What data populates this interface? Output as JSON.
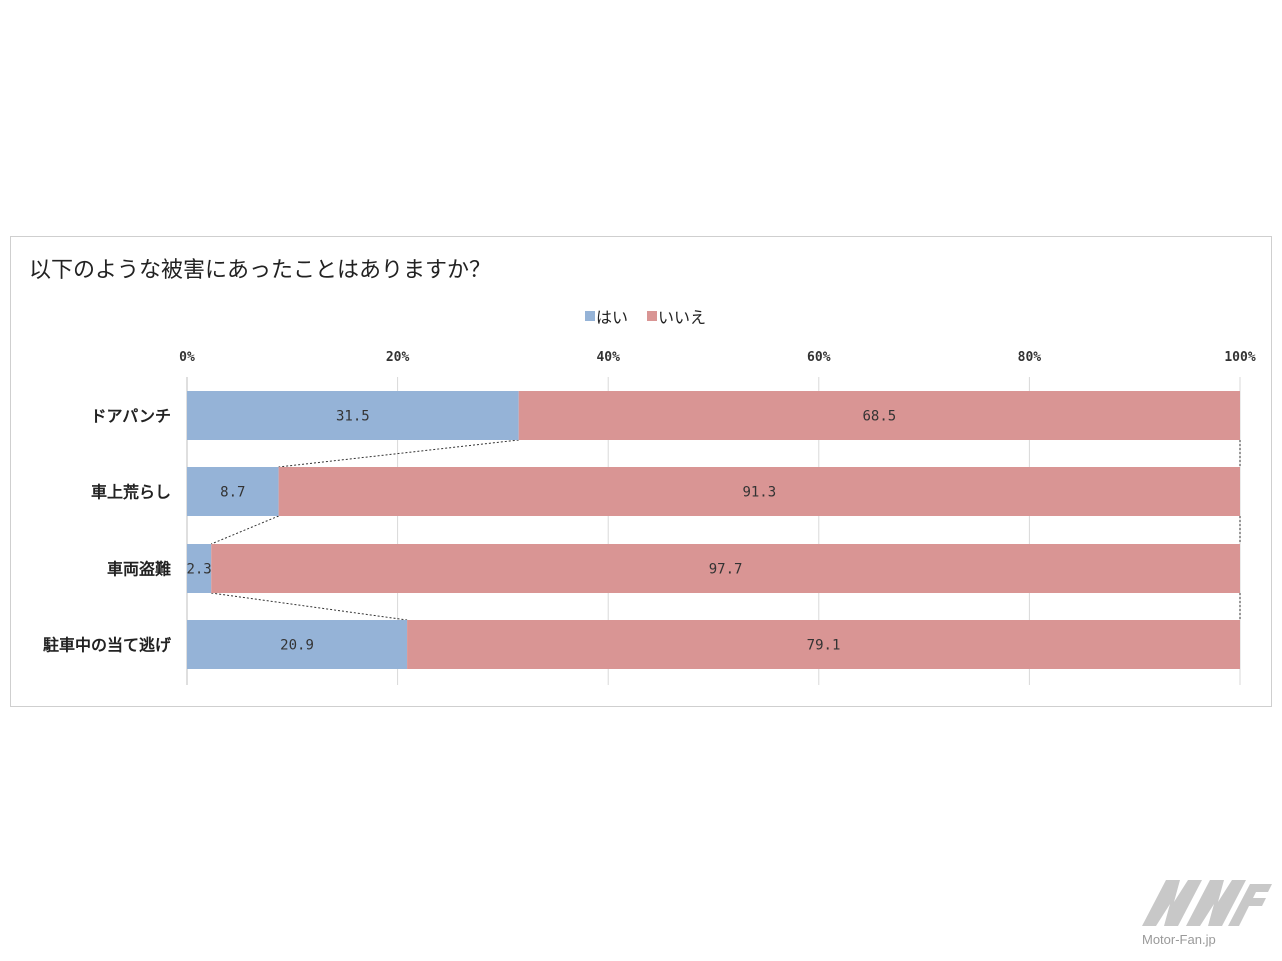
{
  "chart_data": {
    "type": "bar",
    "orientation": "horizontal",
    "stacked": "percent",
    "title": "以下のような被害にあったことはありますか？",
    "categories": [
      "ドアパンチ",
      "車上荒らし",
      "車両盗難",
      "駐車中の当て逃げ"
    ],
    "series": [
      {
        "name": "はい",
        "values": [
          31.5,
          8.7,
          2.3,
          20.9
        ],
        "labels": [
          "31.5",
          "8.7",
          "2.3",
          "20.9"
        ],
        "color": "#95b3d7"
      },
      {
        "name": "いいえ",
        "values": [
          68.5,
          91.3,
          97.7,
          79.1
        ],
        "labels": [
          "68.5",
          "91.3",
          "97.7",
          "79.1"
        ],
        "color": "#d99594"
      }
    ],
    "xlim": [
      0,
      100
    ],
    "x_ticks": [
      "0%",
      "20%",
      "40%",
      "60%",
      "80%",
      "100%"
    ],
    "x_tick_values": [
      0,
      20,
      40,
      60,
      80,
      100
    ],
    "legend_position": "top-center",
    "grid": true,
    "series_lines": true
  },
  "watermark": {
    "text": "Motor-Fan.jp",
    "color": "#c8c8c8"
  }
}
